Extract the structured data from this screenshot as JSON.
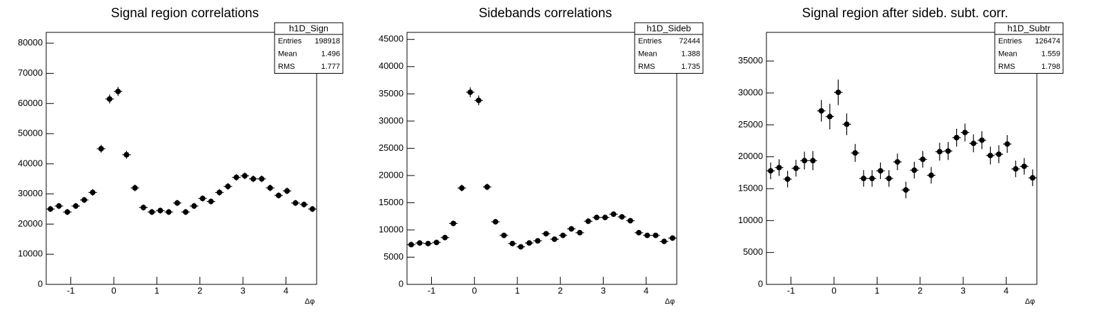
{
  "chart_data": [
    {
      "type": "errorbar",
      "title": "Signal region correlations",
      "x_label": "Δφ",
      "x": [
        -1.473,
        -1.276,
        -1.08,
        -0.884,
        -0.687,
        -0.491,
        -0.295,
        -0.098,
        0.098,
        0.295,
        0.491,
        0.687,
        0.884,
        1.08,
        1.276,
        1.473,
        1.669,
        1.865,
        2.062,
        2.258,
        2.454,
        2.651,
        2.847,
        3.043,
        3.24,
        3.436,
        3.632,
        3.829,
        4.025,
        4.221,
        4.418,
        4.614
      ],
      "values": [
        25000,
        26000,
        24000,
        26000,
        28000,
        30500,
        45000,
        61500,
        64000,
        43000,
        32000,
        25500,
        24000,
        24500,
        24000,
        27000,
        24000,
        26000,
        28500,
        27500,
        30500,
        32500,
        35500,
        36000,
        35000,
        35000,
        32000,
        29500,
        31000,
        27000,
        26500,
        25000
      ],
      "errors": [
        1000,
        1000,
        1000,
        1000,
        1000,
        1100,
        1300,
        1500,
        1500,
        1300,
        1100,
        1000,
        1000,
        1000,
        1000,
        1000,
        1000,
        1000,
        1000,
        1000,
        1100,
        1100,
        1100,
        1100,
        1100,
        1100,
        1100,
        1000,
        1100,
        1000,
        1000,
        1000
      ],
      "color": "#000000",
      "xlim": [
        -1.5708,
        4.7124
      ],
      "xticks": [
        -1,
        0,
        1,
        2,
        3,
        4
      ],
      "ylim": [
        0,
        83600
      ],
      "yticks": [
        0,
        10000,
        20000,
        30000,
        40000,
        50000,
        60000,
        70000,
        80000
      ],
      "stats": {
        "name": "h1D_Sign",
        "rows": [
          [
            "Entries",
            198918
          ],
          [
            "Mean",
            1.496
          ],
          [
            "RMS",
            1.777
          ]
        ]
      }
    },
    {
      "type": "errorbar",
      "title": "Sidebands correlations",
      "x_label": "Δφ",
      "x": [
        -1.473,
        -1.276,
        -1.08,
        -0.884,
        -0.687,
        -0.491,
        -0.295,
        -0.098,
        0.098,
        0.295,
        0.491,
        0.687,
        0.884,
        1.08,
        1.276,
        1.473,
        1.669,
        1.865,
        2.062,
        2.258,
        2.454,
        2.651,
        2.847,
        3.043,
        3.24,
        3.436,
        3.632,
        3.829,
        4.025,
        4.221,
        4.418,
        4.614
      ],
      "values": [
        7300,
        7600,
        7500,
        7700,
        8600,
        11200,
        17700,
        35300,
        33800,
        17900,
        11500,
        9000,
        7500,
        6900,
        7600,
        8000,
        9300,
        8300,
        9000,
        10200,
        9500,
        11600,
        12300,
        12300,
        12900,
        12400,
        11700,
        9500,
        9000,
        9000,
        7900,
        8500
      ],
      "errors": [
        400,
        400,
        400,
        400,
        450,
        500,
        600,
        900,
        900,
        600,
        500,
        450,
        400,
        400,
        400,
        400,
        450,
        400,
        450,
        500,
        450,
        500,
        500,
        500,
        500,
        500,
        500,
        450,
        450,
        450,
        400,
        450
      ],
      "color": "#000000",
      "xlim": [
        -1.5708,
        4.7124
      ],
      "xticks": [
        -1,
        0,
        1,
        2,
        3,
        4
      ],
      "ylim": [
        0,
        46300
      ],
      "yticks": [
        0,
        5000,
        10000,
        15000,
        20000,
        25000,
        30000,
        35000,
        40000,
        45000
      ],
      "stats": {
        "name": "h1D_Sideb",
        "rows": [
          [
            "Entries",
            72444
          ],
          [
            "Mean",
            1.388
          ],
          [
            "RMS",
            1.735
          ]
        ]
      }
    },
    {
      "type": "errorbar",
      "title": "Signal region after sideb. subt. corr.",
      "x_label": "Δφ",
      "x": [
        -1.473,
        -1.276,
        -1.08,
        -0.884,
        -0.687,
        -0.491,
        -0.295,
        -0.098,
        0.098,
        0.295,
        0.491,
        0.687,
        0.884,
        1.08,
        1.276,
        1.473,
        1.669,
        1.865,
        2.062,
        2.258,
        2.454,
        2.651,
        2.847,
        3.043,
        3.24,
        3.436,
        3.632,
        3.829,
        4.025,
        4.221,
        4.418,
        4.614
      ],
      "values": [
        17800,
        18300,
        16500,
        18200,
        19400,
        19400,
        27200,
        26300,
        30100,
        25100,
        20600,
        16600,
        16600,
        17800,
        16600,
        19200,
        14800,
        17900,
        19600,
        17100,
        20800,
        20900,
        23000,
        23800,
        22100,
        22600,
        20200,
        20400,
        22000,
        18100,
        18500,
        16700
      ],
      "errors": [
        1300,
        1300,
        1300,
        1300,
        1400,
        1500,
        1700,
        2000,
        2000,
        1700,
        1400,
        1300,
        1300,
        1300,
        1300,
        1300,
        1300,
        1300,
        1300,
        1300,
        1400,
        1400,
        1400,
        1400,
        1400,
        1400,
        1400,
        1400,
        1400,
        1300,
        1300,
        1300
      ],
      "color": "#000000",
      "xlim": [
        -1.5708,
        4.7124
      ],
      "xticks": [
        -1,
        0,
        1,
        2,
        3,
        4
      ],
      "ylim": [
        0,
        39500
      ],
      "yticks": [
        0,
        5000,
        10000,
        15000,
        20000,
        25000,
        30000,
        35000
      ],
      "stats": {
        "name": "h1D_Subtr",
        "rows": [
          [
            "Entries",
            126474
          ],
          [
            "Mean",
            1.559
          ],
          [
            "RMS",
            1.798
          ]
        ]
      }
    }
  ]
}
